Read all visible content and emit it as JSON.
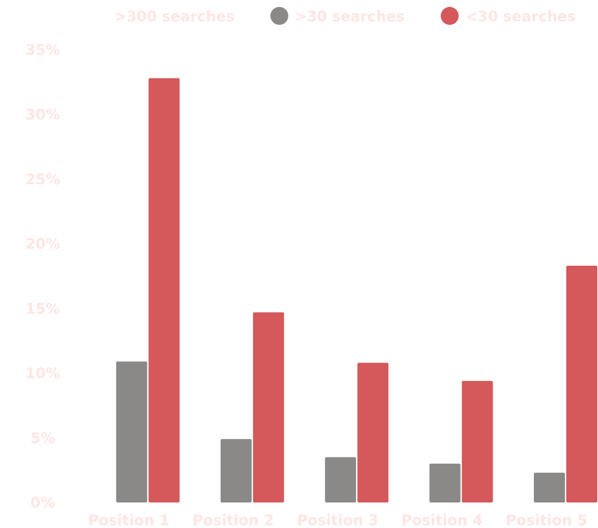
{
  "chart_data": {
    "type": "bar",
    "title": "",
    "xlabel": "",
    "ylabel": "",
    "categories": [
      "Position 1",
      "Position 2",
      "Position 3",
      "Position 4",
      "Position 5"
    ],
    "series": [
      {
        "name": ">300 searches",
        "values": [
          null,
          null,
          null,
          null,
          null
        ]
      },
      {
        "name": ">30 searches",
        "values": [
          10.9,
          4.9,
          3.5,
          3.0,
          2.3
        ]
      },
      {
        "name": "<30 searches",
        "values": [
          32.8,
          14.7,
          10.8,
          9.4,
          18.3
        ]
      }
    ],
    "ylim": [
      0,
      35
    ],
    "yticks": [
      0,
      5,
      10,
      15,
      20,
      25,
      30,
      35
    ],
    "ytick_labels": [
      "0%",
      "5%",
      "10%",
      "15%",
      "20%",
      "25%",
      "30%",
      "35%"
    ],
    "legend_position": "top",
    "grid": false
  },
  "colors": {
    "text": "#fce6e3",
    "series": [
      "#f3b8b3",
      "#8a8987",
      "#d5585a"
    ]
  }
}
